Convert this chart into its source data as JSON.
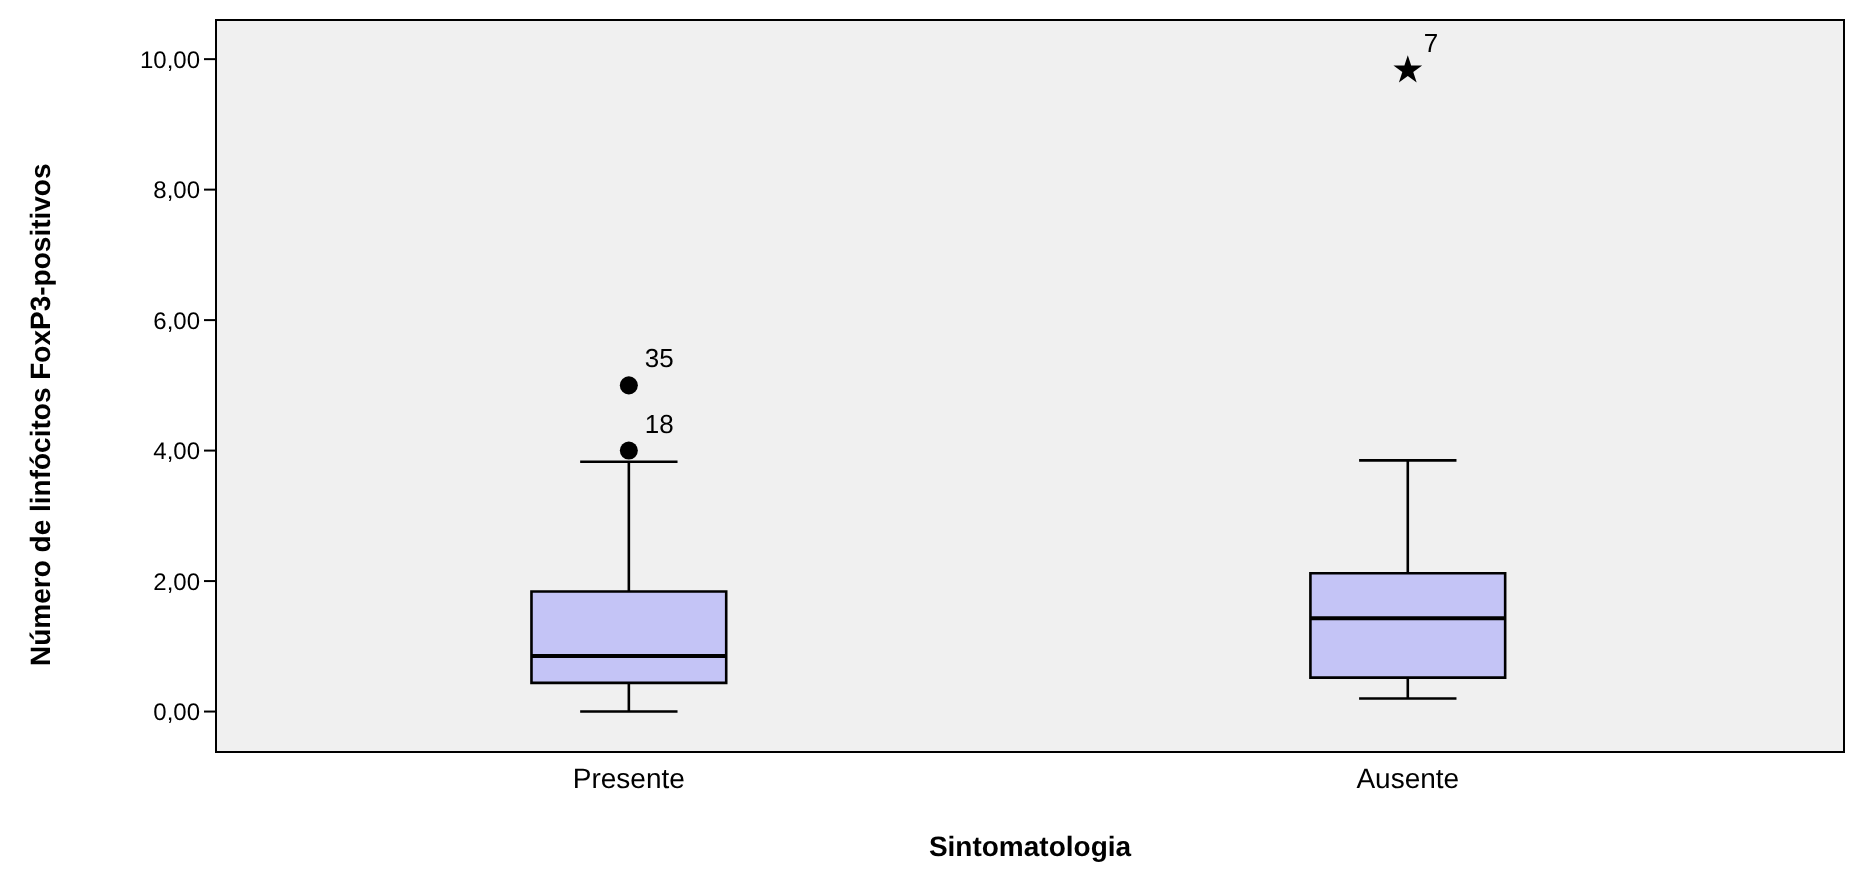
{
  "chart_data": {
    "type": "box",
    "xlabel": "Sintomatologia",
    "ylabel": "Número de linfócitos FoxP3-positivos",
    "categories": [
      "Presente",
      "Ausente"
    ],
    "series": [
      {
        "color": "#c4c4f6",
        "boxes": [
          {
            "low": 0,
            "q1": 0.44,
            "median": 0.85,
            "q3": 1.84,
            "high": 3.83
          },
          {
            "low": 0.2,
            "q1": 0.52,
            "median": 1.43,
            "q3": 2.12,
            "high": 3.85
          }
        ]
      },
      {
        "type": "scatter",
        "color": "#000000",
        "marker": "circle",
        "x": [
          "Presente",
          "Presente"
        ],
        "values": [
          4.0,
          5.0
        ]
      },
      {
        "type": "scatter",
        "color": "#000000",
        "marker": "star",
        "x": [
          "Ausente"
        ],
        "values": [
          9.83
        ]
      }
    ],
    "ylim": [
      -0.62,
      10.6
    ],
    "yticks": [
      {
        "value": 0,
        "label": "0,00"
      },
      {
        "value": 2,
        "label": "2,00"
      },
      {
        "value": 4,
        "label": "4,00"
      },
      {
        "value": 6,
        "label": "6,00"
      },
      {
        "value": 8,
        "label": "8,00"
      },
      {
        "value": 10,
        "label": "10,00"
      }
    ],
    "annotations": [
      {
        "text": "35",
        "x": "Presente",
        "y": 5.0
      },
      {
        "text": "18",
        "x": "Presente",
        "y": 4.0
      },
      {
        "text": "7",
        "x": "Ausente",
        "y": 9.83
      }
    ]
  }
}
